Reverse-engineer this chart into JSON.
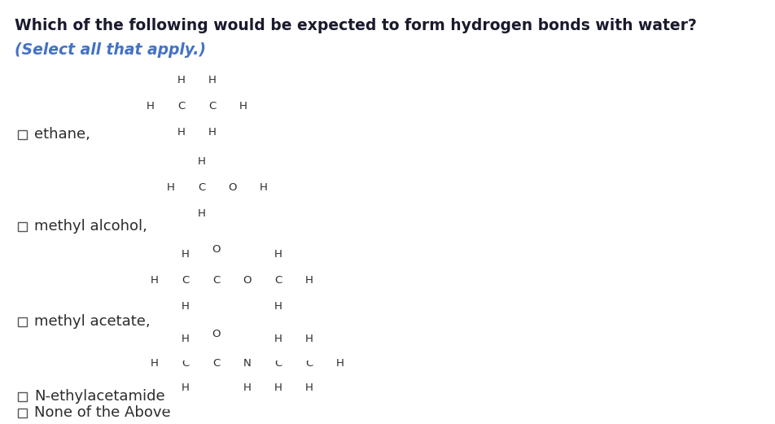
{
  "title": "Which of the following would be expected to form hydrogen bonds with water?",
  "subtitle": "(Select all that apply.)",
  "title_color": "#1a1a2e",
  "subtitle_color": "#4472C4",
  "text_color": "#2c2c2c",
  "bg_color": "#ffffff",
  "options": [
    "ethane,",
    "methyl alcohol,",
    "methyl acetate,",
    "N-ethylacetamide,",
    "None of the Above"
  ],
  "font_size_title": 13.5,
  "font_size_subtitle": 13.5,
  "font_size_label": 13,
  "font_size_atom": 9.5
}
